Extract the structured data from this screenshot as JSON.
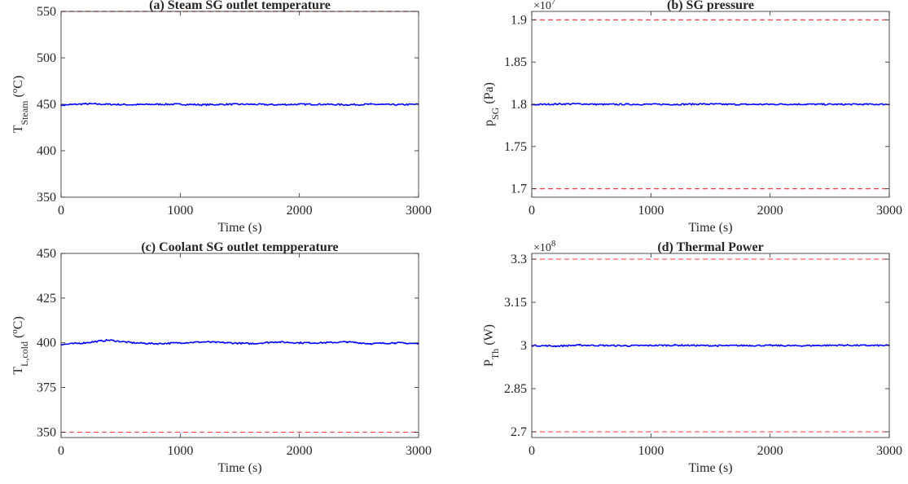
{
  "colors": {
    "signal": "#0000ff",
    "limit": "#ff4040",
    "axis": "#262626"
  },
  "chart_data": [
    {
      "type": "line",
      "title": "(a) Steam SG outlet temperature",
      "xlabel": "Time (s)",
      "ylabel": {
        "main": "T",
        "sub": "Steam",
        "unit_open": " (",
        "unit_sup": "o",
        "unit_close": "C)"
      },
      "multiplier": null,
      "xlim": [
        0,
        3000
      ],
      "ylim": [
        350,
        550
      ],
      "xticks": [
        0,
        1000,
        2000,
        3000
      ],
      "xtick_labels": [
        "0",
        "1000",
        "2000",
        "3000"
      ],
      "yticks": [
        350,
        400,
        450,
        500,
        550
      ],
      "ytick_labels": [
        "350",
        "400",
        "450",
        "500",
        "550"
      ],
      "series": [
        {
          "values_x": [
            0,
            200,
            400,
            600,
            800,
            1000,
            1200,
            1400,
            1600,
            1800,
            2000,
            2200,
            2400,
            2600,
            2800,
            3000
          ],
          "values_y": [
            449,
            450.5,
            450,
            449.5,
            450,
            450,
            449.5,
            450,
            450,
            449.5,
            450,
            450,
            449.5,
            450,
            449.5,
            450
          ]
        }
      ],
      "limits": [
        550
      ]
    },
    {
      "type": "line",
      "title": "(b) SG pressure",
      "xlabel": "Time (s)",
      "ylabel": {
        "main": "p",
        "sub": "SG",
        "unit_open": " (Pa)",
        "unit_sup": "",
        "unit_close": ""
      },
      "multiplier": {
        "base": "×10",
        "exp": "7"
      },
      "xlim": [
        0,
        3000
      ],
      "ylim": [
        1.69,
        1.91
      ],
      "xticks": [
        0,
        1000,
        2000,
        3000
      ],
      "xtick_labels": [
        "0",
        "1000",
        "2000",
        "3000"
      ],
      "yticks": [
        1.7,
        1.75,
        1.8,
        1.85,
        1.9
      ],
      "ytick_labels": [
        "1.7",
        "1.75",
        "1.8",
        "1.85",
        "1.9"
      ],
      "series": [
        {
          "values_x": [
            0,
            200,
            400,
            600,
            800,
            1000,
            1200,
            1400,
            1600,
            1800,
            2000,
            2200,
            2400,
            2600,
            2800,
            3000
          ],
          "values_y": [
            1.7995,
            1.8003,
            1.8005,
            1.7998,
            1.8,
            1.8,
            1.7999,
            1.8003,
            1.8,
            1.7998,
            1.8,
            1.8001,
            1.8,
            1.7999,
            1.8,
            1.8
          ]
        }
      ],
      "limits": [
        1.9,
        1.7
      ]
    },
    {
      "type": "line",
      "title": "(c) Coolant SG outlet tempperature",
      "xlabel": "Time (s)",
      "ylabel": {
        "main": "T",
        "sub": "L,cold",
        "unit_open": " (",
        "unit_sup": "o",
        "unit_close": "C)"
      },
      "multiplier": null,
      "xlim": [
        0,
        3000
      ],
      "ylim": [
        347,
        450
      ],
      "xticks": [
        0,
        1000,
        2000,
        3000
      ],
      "xtick_labels": [
        "0",
        "1000",
        "2000",
        "3000"
      ],
      "yticks": [
        350,
        375,
        400,
        425,
        450
      ],
      "ytick_labels": [
        "350",
        "375",
        "400",
        "425",
        "450"
      ],
      "series": [
        {
          "values_x": [
            0,
            200,
            400,
            600,
            800,
            1000,
            1200,
            1400,
            1600,
            1800,
            2000,
            2200,
            2400,
            2600,
            2800,
            3000
          ],
          "values_y": [
            399,
            400,
            401.5,
            400,
            399.5,
            400,
            400.5,
            400,
            399.5,
            400.5,
            400,
            400,
            400.5,
            399.5,
            400,
            399.5
          ]
        }
      ],
      "limits": [
        350
      ]
    },
    {
      "type": "line",
      "title": "(d) Thermal Power",
      "xlabel": "Time (s)",
      "ylabel": {
        "main": "P",
        "sub": "Th",
        "unit_open": " (W)",
        "unit_sup": "",
        "unit_close": ""
      },
      "multiplier": {
        "base": "×10",
        "exp": "8"
      },
      "xlim": [
        0,
        3000
      ],
      "ylim": [
        2.68,
        3.32
      ],
      "xticks": [
        0,
        1000,
        2000,
        3000
      ],
      "xtick_labels": [
        "0",
        "1000",
        "2000",
        "3000"
      ],
      "yticks": [
        2.7,
        2.85,
        3.0,
        3.15,
        3.3
      ],
      "ytick_labels": [
        "2.7",
        "2.85",
        "3",
        "3.15",
        "3.3"
      ],
      "series": [
        {
          "values_x": [
            0,
            200,
            400,
            600,
            800,
            1000,
            1200,
            1400,
            1600,
            1800,
            2000,
            2200,
            2400,
            2600,
            2800,
            3000
          ],
          "values_y": [
            3.0,
            2.998,
            3.001,
            3.0,
            2.999,
            3.0,
            3.001,
            3.0,
            2.999,
            3.0,
            3.0,
            2.999,
            3.0,
            3.001,
            3.0,
            3.0
          ]
        }
      ],
      "limits": [
        3.3,
        2.7
      ]
    }
  ]
}
